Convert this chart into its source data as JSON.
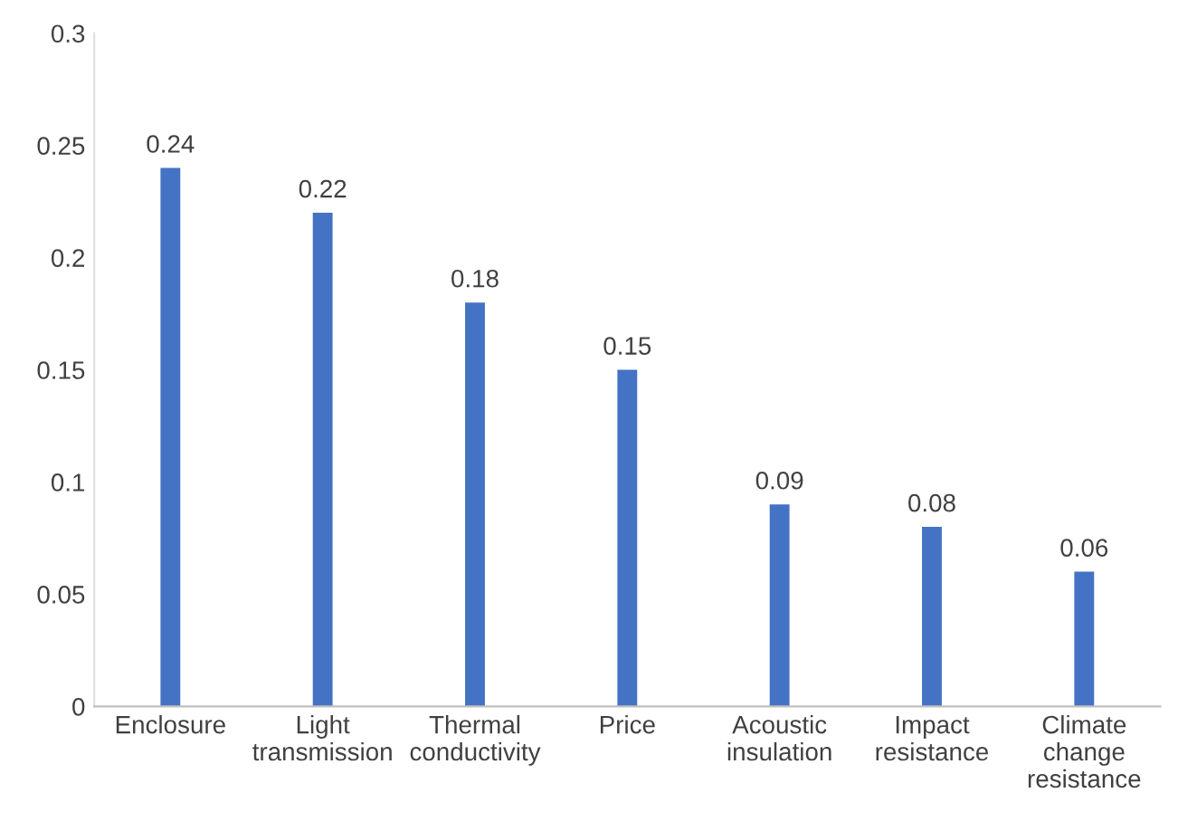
{
  "chart_data": {
    "type": "bar",
    "categories": [
      "Enclosure",
      "Light\ntransmission",
      "Thermal\nconductivity",
      "Price",
      "Acoustic\ninsulation",
      "Impact\nresistance",
      "Climate\nchange\nresistance"
    ],
    "values": [
      0.24,
      0.22,
      0.18,
      0.15,
      0.09,
      0.08,
      0.06
    ],
    "color": "#4472c4",
    "ylim": [
      0,
      0.3
    ],
    "yticks": [
      0,
      0.05,
      0.1,
      0.15,
      0.2,
      0.25,
      0.3
    ],
    "data_labels": true,
    "grid": false
  }
}
